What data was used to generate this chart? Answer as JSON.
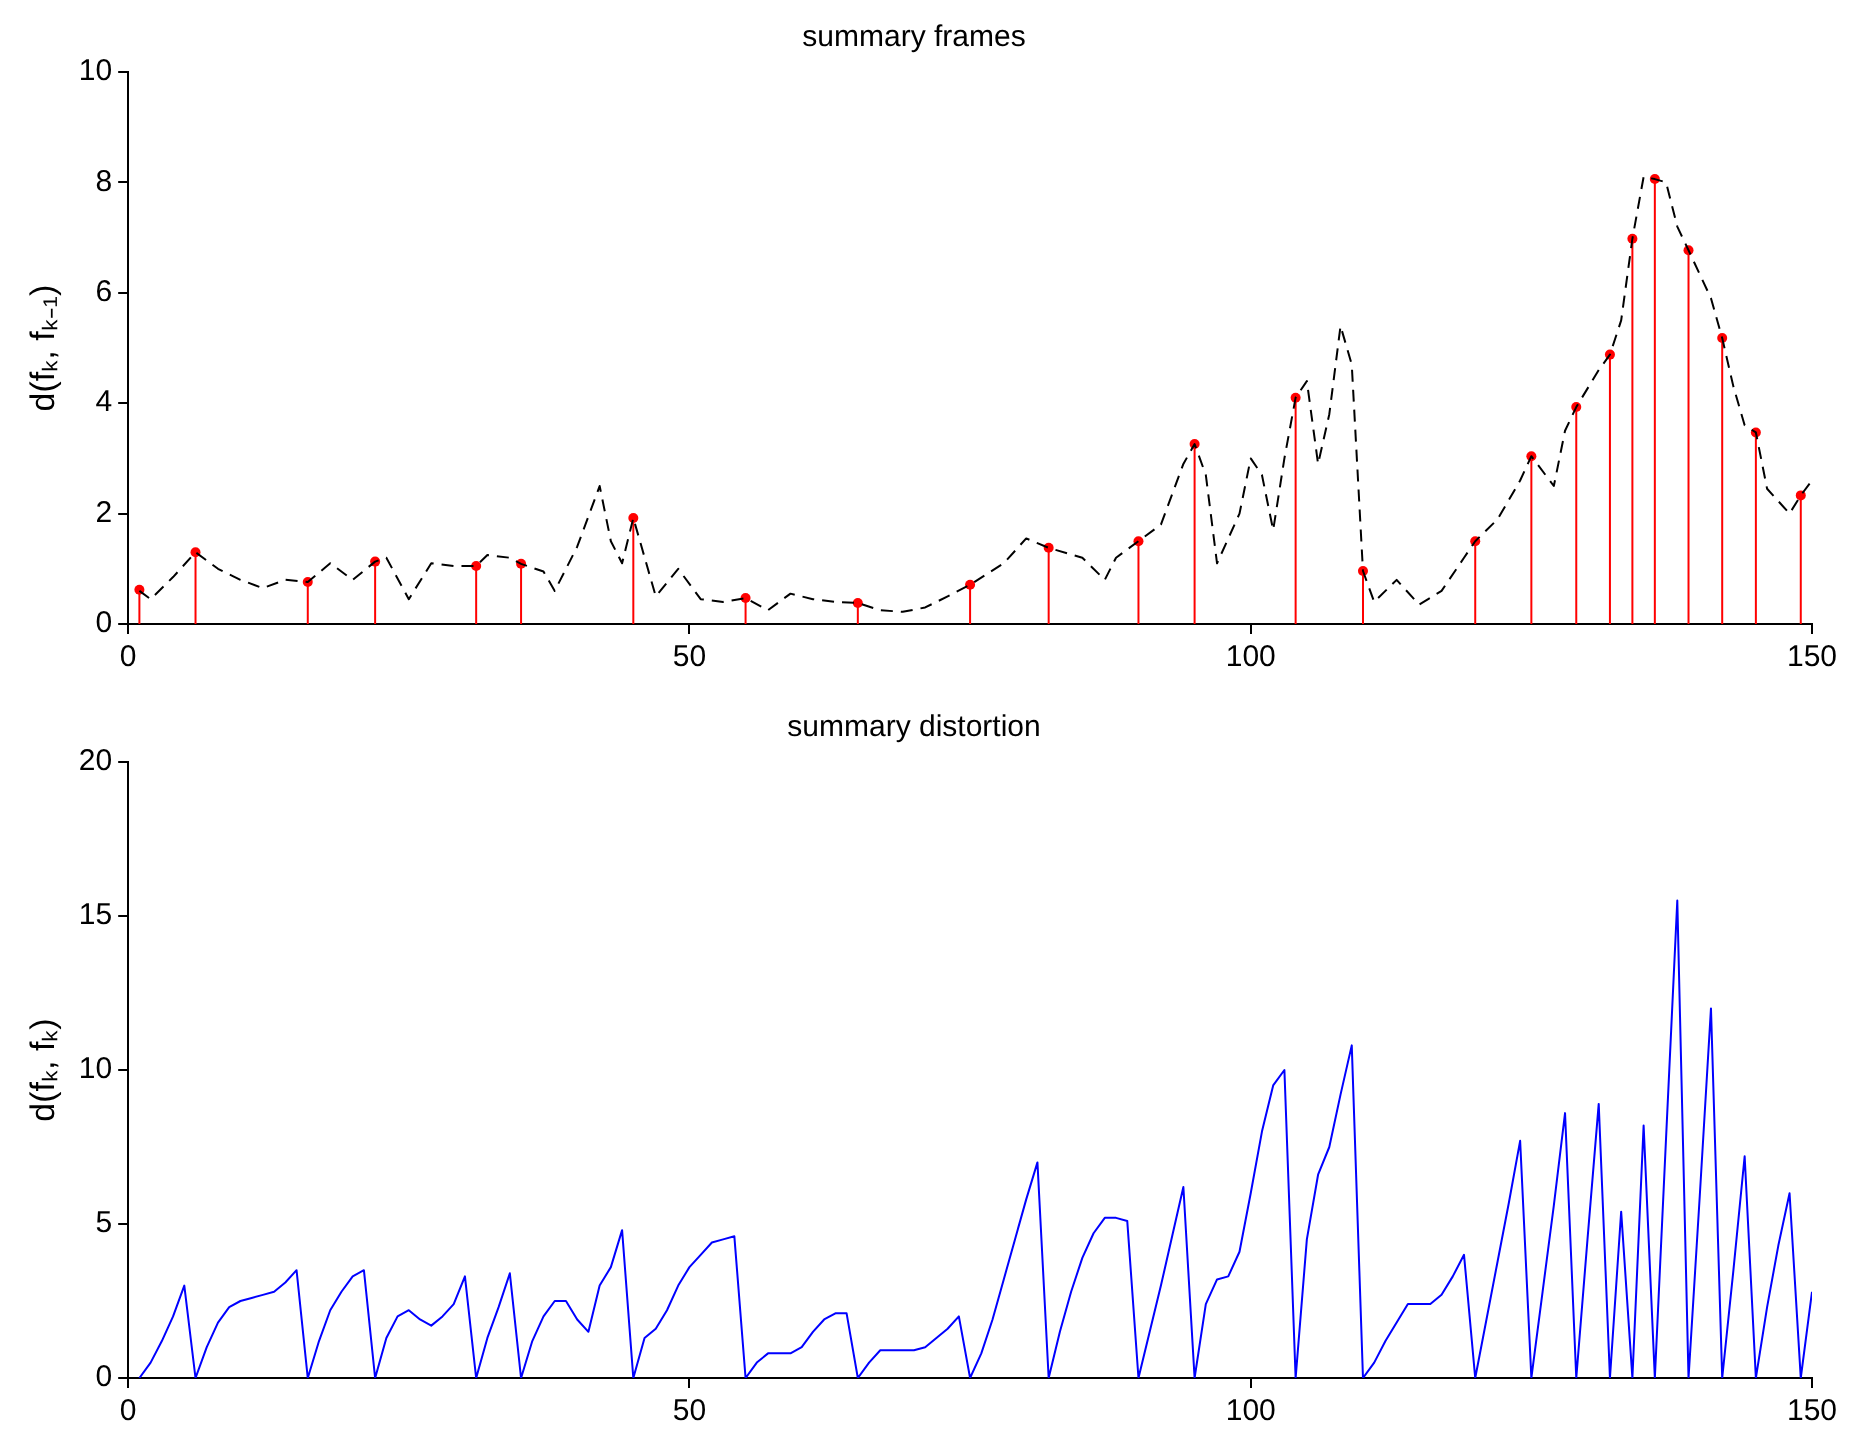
{
  "chart_data": [
    {
      "type": "line",
      "title": "summary frames",
      "ylabel": "d(fₖ, fₖ₋₁)",
      "xlim": [
        0,
        150
      ],
      "xticks": [
        0,
        50,
        100,
        150
      ],
      "ylim": [
        0,
        10
      ],
      "yticks": [
        0,
        2,
        4,
        6,
        8,
        10
      ],
      "series": [
        {
          "color": "#000000",
          "line_style": "dashed",
          "marker": "none",
          "x": [
            1,
            2,
            4,
            6,
            8,
            10,
            12,
            14,
            16,
            18,
            20,
            22,
            23,
            25,
            27,
            29,
            31,
            32,
            34,
            35,
            37,
            38,
            40,
            42,
            43,
            44,
            45,
            47,
            49,
            51,
            53,
            55,
            57,
            59,
            61,
            63,
            65,
            67,
            69,
            71,
            73,
            75,
            78,
            80,
            82,
            85,
            87,
            88,
            90,
            92,
            94,
            95,
            96,
            97,
            99,
            100,
            101,
            102,
            103,
            104,
            105,
            106,
            107,
            108,
            109,
            110,
            111,
            113,
            115,
            117,
            119,
            120,
            122,
            124,
            125,
            127,
            128,
            129,
            131,
            132,
            133,
            134,
            135,
            136,
            137,
            138,
            139,
            141,
            142,
            143,
            144,
            145,
            146,
            148,
            149,
            150
          ],
          "values": [
            0.6,
            0.45,
            0.85,
            1.3,
            1.0,
            0.8,
            0.65,
            0.8,
            0.76,
            1.1,
            0.8,
            1.13,
            1.2,
            0.45,
            1.1,
            1.05,
            1.05,
            1.25,
            1.2,
            1.09,
            0.95,
            0.6,
            1.4,
            2.5,
            1.5,
            1.1,
            1.92,
            0.5,
            1.0,
            0.45,
            0.4,
            0.47,
            0.25,
            0.55,
            0.45,
            0.4,
            0.38,
            0.25,
            0.22,
            0.3,
            0.5,
            0.71,
            1.1,
            1.55,
            1.38,
            1.2,
            0.8,
            1.2,
            1.5,
            1.8,
            2.9,
            3.26,
            2.7,
            1.1,
            2.0,
            3.0,
            2.7,
            1.7,
            3.0,
            4.1,
            4.4,
            2.9,
            3.8,
            5.4,
            4.7,
            0.96,
            0.4,
            0.8,
            0.35,
            0.6,
            1.2,
            1.5,
            1.9,
            2.6,
            3.04,
            2.5,
            3.5,
            3.93,
            4.6,
            4.88,
            5.5,
            6.98,
            8.1,
            8.06,
            8.0,
            7.2,
            6.77,
            5.9,
            5.18,
            4.3,
            3.6,
            3.47,
            2.45,
            2.0,
            2.33,
            2.6
          ]
        },
        {
          "type": "lollipop",
          "color": "#ff0000",
          "marker": "circle",
          "x": [
            1,
            6,
            16,
            22,
            31,
            35,
            45,
            55,
            65,
            75,
            82,
            90,
            95,
            104,
            110,
            120,
            125,
            129,
            132,
            134,
            136,
            139,
            142,
            145,
            149
          ],
          "values": [
            0.62,
            1.3,
            0.76,
            1.13,
            1.05,
            1.09,
            1.92,
            0.47,
            0.38,
            0.71,
            1.38,
            1.5,
            3.26,
            4.1,
            0.96,
            1.5,
            3.04,
            3.93,
            4.88,
            6.98,
            8.06,
            6.77,
            5.18,
            3.47,
            2.33
          ]
        }
      ]
    },
    {
      "type": "line",
      "title": "summary distortion",
      "ylabel": "d(fₖ, fₖ)",
      "xlim": [
        0,
        150
      ],
      "xticks": [
        0,
        50,
        100,
        150
      ],
      "ylim": [
        0,
        20
      ],
      "yticks": [
        0,
        5,
        10,
        15,
        20
      ],
      "series": [
        {
          "color": "#0000ff",
          "x": [
            1,
            2,
            3,
            4,
            5,
            6,
            7,
            8,
            9,
            10,
            11,
            12,
            13,
            14,
            15,
            16,
            17,
            18,
            19,
            20,
            21,
            22,
            23,
            24,
            25,
            26,
            27,
            28,
            29,
            30,
            31,
            32,
            33,
            34,
            35,
            36,
            37,
            38,
            39,
            40,
            41,
            42,
            43,
            44,
            45,
            46,
            47,
            48,
            49,
            50,
            51,
            52,
            53,
            54,
            55,
            56,
            57,
            58,
            59,
            60,
            61,
            62,
            63,
            64,
            65,
            66,
            67,
            68,
            69,
            70,
            71,
            72,
            73,
            74,
            75,
            76,
            77,
            78,
            79,
            80,
            81,
            82,
            83,
            84,
            85,
            86,
            87,
            88,
            89,
            90,
            91,
            92,
            93,
            94,
            95,
            96,
            97,
            98,
            99,
            100,
            101,
            102,
            103,
            104,
            105,
            106,
            107,
            108,
            109,
            110,
            111,
            112,
            113,
            114,
            115,
            116,
            117,
            118,
            119,
            120,
            121,
            122,
            123,
            124,
            125,
            126,
            127,
            128,
            129,
            130,
            131,
            132,
            133,
            134,
            135,
            136,
            137,
            138,
            139,
            140,
            141,
            142,
            143,
            144,
            145,
            146,
            147,
            148,
            149,
            150
          ],
          "values": [
            0,
            0.5,
            1.2,
            2.0,
            3.0,
            0,
            1.0,
            1.8,
            2.3,
            2.5,
            2.6,
            2.7,
            2.8,
            3.1,
            3.5,
            0,
            1.2,
            2.2,
            2.8,
            3.3,
            3.5,
            0,
            1.3,
            2.0,
            2.2,
            1.9,
            1.7,
            2.0,
            2.4,
            3.3,
            0,
            1.3,
            2.3,
            3.4,
            0,
            1.2,
            2.0,
            2.5,
            2.5,
            1.9,
            1.5,
            3.0,
            3.6,
            4.8,
            0,
            1.3,
            1.6,
            2.2,
            3.0,
            3.6,
            4.0,
            4.4,
            4.5,
            4.6,
            0,
            0.5,
            0.8,
            0.8,
            0.8,
            1.0,
            1.5,
            1.9,
            2.1,
            2.1,
            0,
            0.5,
            0.9,
            0.9,
            0.9,
            0.9,
            1.0,
            1.3,
            1.6,
            2.0,
            0,
            0.8,
            1.9,
            3.2,
            4.5,
            5.8,
            7.0,
            0,
            1.5,
            2.8,
            3.9,
            4.7,
            5.2,
            5.2,
            5.1,
            0,
            1.5,
            3.0,
            4.6,
            6.2,
            0,
            2.4,
            3.2,
            3.3,
            4.1,
            6.0,
            8.0,
            9.5,
            10.0,
            0,
            4.5,
            6.6,
            7.5,
            9.2,
            10.8,
            0,
            0.5,
            1.2,
            1.8,
            2.4,
            2.4,
            2.4,
            2.7,
            3.3,
            4.0,
            0,
            1.9,
            3.8,
            5.7,
            7.7,
            0,
            2.8,
            5.6,
            8.6,
            0,
            4.5,
            8.9,
            0,
            5.4,
            0,
            8.2,
            0,
            7.8,
            15.5,
            0,
            5.9,
            12.0,
            0,
            3.5,
            7.2,
            0,
            2.3,
            4.3,
            6.0,
            0,
            2.8
          ]
        }
      ]
    }
  ]
}
